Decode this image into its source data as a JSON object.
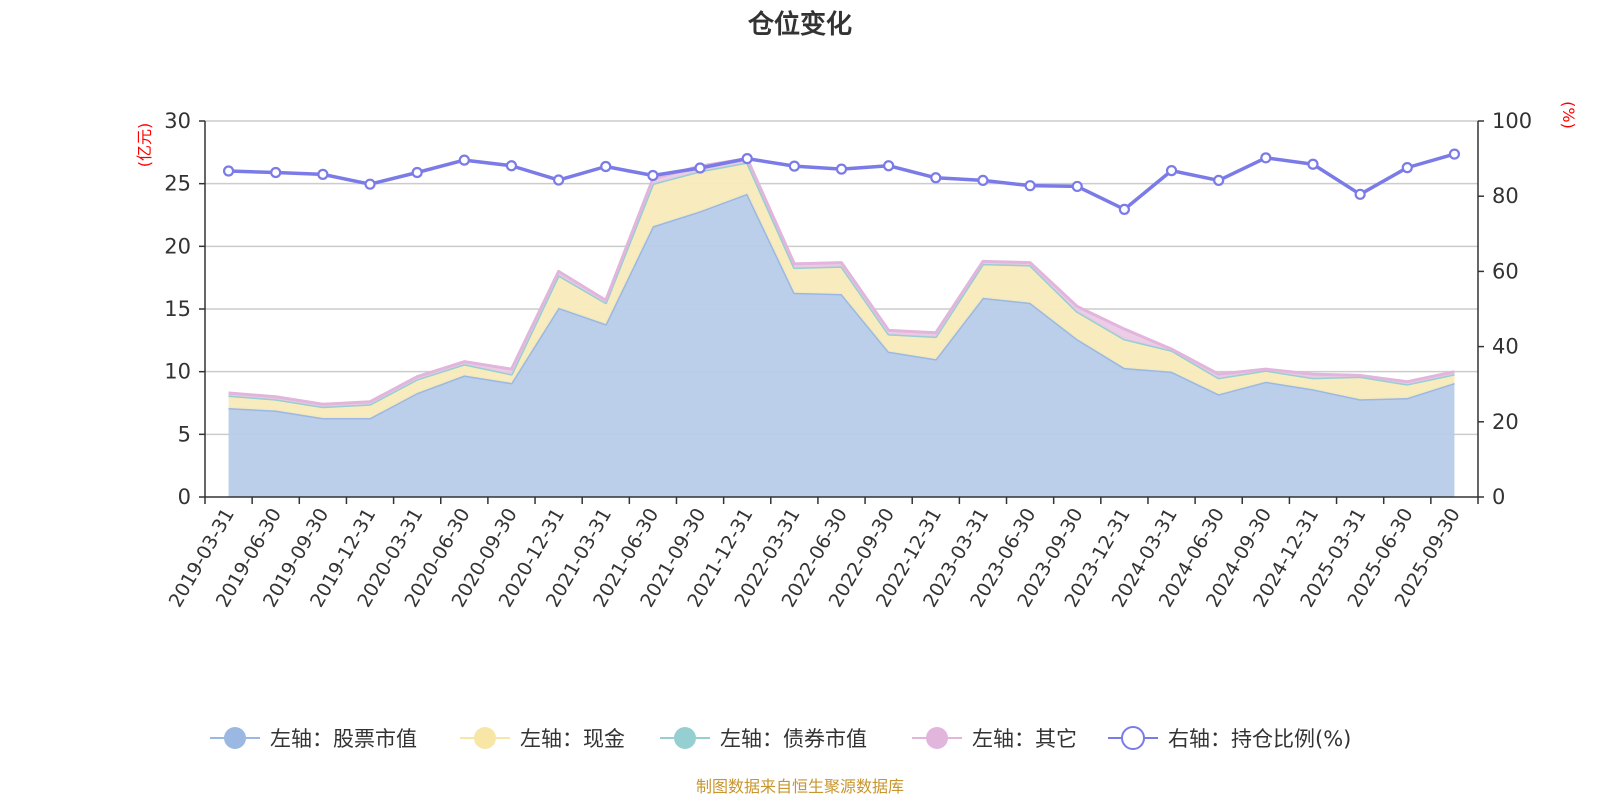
{
  "chart_data": {
    "type": "area",
    "title": "仓位变化",
    "left_axis": {
      "unit": "(亿元)",
      "min": 0,
      "max": 30,
      "ticks": [
        0,
        5,
        10,
        15,
        20,
        25,
        30
      ]
    },
    "right_axis": {
      "unit": "(%)",
      "min": 0,
      "max": 100,
      "ticks": [
        0,
        20,
        40,
        60,
        80,
        100
      ]
    },
    "categories": [
      "2019-03-31",
      "2019-06-30",
      "2019-09-30",
      "2019-12-31",
      "2020-03-31",
      "2020-06-30",
      "2020-09-30",
      "2020-12-31",
      "2021-03-31",
      "2021-06-30",
      "2021-09-30",
      "2021-12-31",
      "2022-03-31",
      "2022-06-30",
      "2022-09-30",
      "2022-12-31",
      "2023-03-31",
      "2023-06-30",
      "2023-09-30",
      "2023-12-31",
      "2024-03-31",
      "2024-06-30",
      "2024-09-30",
      "2024-12-31",
      "2025-03-31",
      "2025-06-30",
      "2025-09-30"
    ],
    "series": [
      {
        "name": "左轴：股票市值",
        "axis": "left",
        "kind": "area",
        "color": "#9ab8e2",
        "fill": "#b8cce9",
        "values": [
          7.1,
          6.9,
          6.3,
          6.3,
          8.3,
          9.7,
          9.1,
          15.1,
          13.8,
          21.6,
          22.8,
          24.2,
          16.3,
          16.2,
          11.6,
          11.0,
          15.9,
          15.5,
          12.6,
          10.3,
          10.0,
          8.2,
          9.2,
          8.6,
          7.8,
          7.9,
          9.1
        ]
      },
      {
        "name": "左轴：现金",
        "axis": "left",
        "kind": "area",
        "color": "#f7e6a6",
        "fill": "#f8ebbc",
        "values": [
          1.0,
          0.9,
          0.9,
          1.1,
          1.1,
          0.9,
          0.7,
          2.6,
          1.7,
          3.4,
          3.2,
          2.5,
          2.0,
          2.2,
          1.4,
          1.8,
          2.7,
          3.0,
          2.2,
          2.3,
          1.7,
          1.3,
          0.9,
          0.9,
          1.8,
          1.1,
          0.7
        ]
      },
      {
        "name": "左轴：债券市值",
        "axis": "left",
        "kind": "area",
        "color": "#96cfd2",
        "fill": "#b5dde0",
        "values": [
          0,
          0,
          0,
          0,
          0,
          0,
          0,
          0,
          0,
          0,
          0,
          0,
          0,
          0,
          0,
          0,
          0,
          0,
          0,
          0,
          0,
          0,
          0,
          0,
          0,
          0,
          0
        ]
      },
      {
        "name": "左轴：其它",
        "axis": "left",
        "kind": "area",
        "color": "#e2b5dc",
        "fill": "#ecc9e6",
        "values": [
          0.2,
          0.2,
          0.2,
          0.2,
          0.2,
          0.2,
          0.4,
          0.3,
          0.2,
          0.4,
          0.4,
          0.3,
          0.3,
          0.3,
          0.3,
          0.3,
          0.2,
          0.2,
          0.4,
          0.8,
          0.1,
          0.3,
          0.1,
          0.3,
          0.1,
          0.2,
          0.2
        ]
      },
      {
        "name": "右轴：持仓比例(%)",
        "axis": "right",
        "kind": "line",
        "color": "#7b7be8",
        "values": [
          86.7,
          86.3,
          85.8,
          83.2,
          86.3,
          89.6,
          88.1,
          84.3,
          87.9,
          85.5,
          87.5,
          90.0,
          88.0,
          87.2,
          88.1,
          84.9,
          84.2,
          82.8,
          82.6,
          76.5,
          86.8,
          84.2,
          90.2,
          88.5,
          80.5,
          87.6,
          91.2
        ]
      }
    ]
  },
  "source": "制图数据来自恒生聚源数据库"
}
